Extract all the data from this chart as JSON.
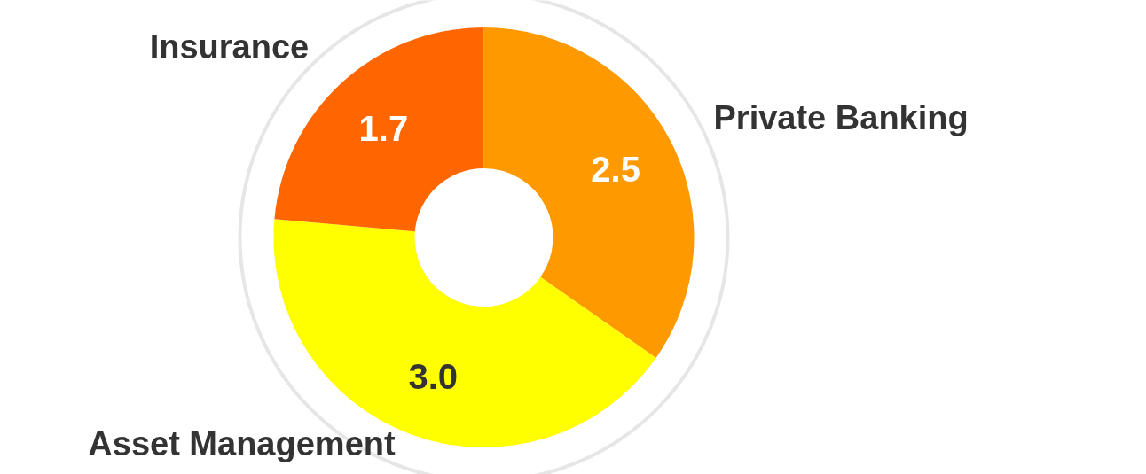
{
  "chart_data": {
    "type": "donut",
    "categories": [
      "Private Banking",
      "Asset Management",
      "Insurance"
    ],
    "values": [
      2.5,
      3.0,
      1.7
    ],
    "colors": [
      "#ff9900",
      "#ffff00",
      "#ff6600"
    ],
    "value_labels": [
      "2.5",
      "3.0",
      "1.7"
    ]
  }
}
